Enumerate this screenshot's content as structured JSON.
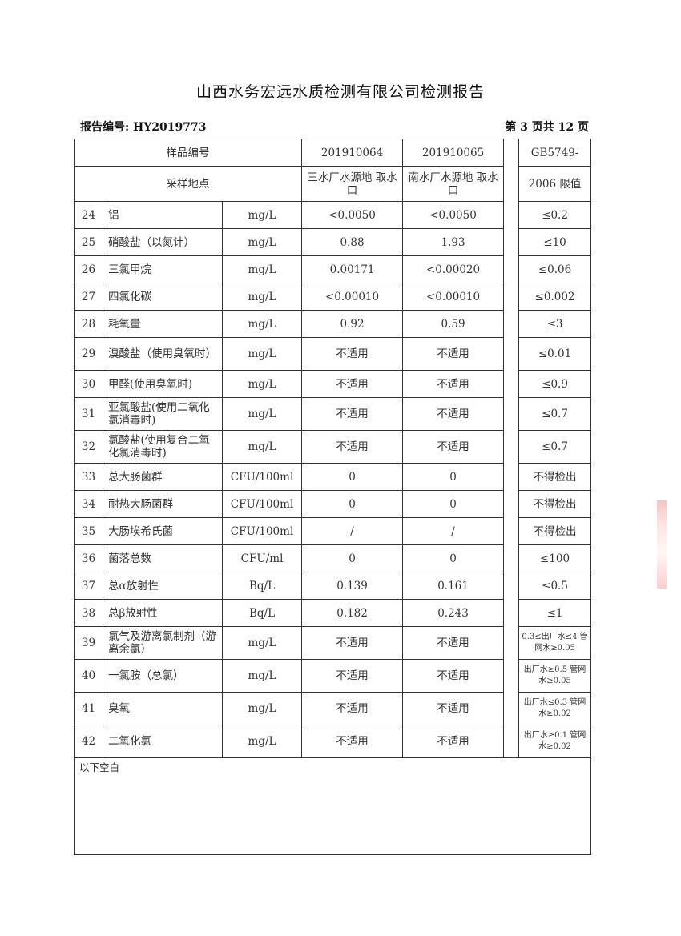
{
  "title": "山西水务宏远水质检测有限公司检测报告",
  "report_no": "报告编号: HY2019773",
  "page": "第 3 页共 12 页",
  "header": {
    "sample_no_label": "样品编号",
    "sample1": "201910064",
    "sample2": "201910065",
    "limit_label": "GB5749-",
    "location_label": "采样地点",
    "location1": "三水厂水源地 取水口",
    "location2": "南水厂水源地 取水口",
    "limit_label2": "2006 限值"
  },
  "rows": [
    {
      "no": "24",
      "name": "铝",
      "unit": "mg/L",
      "v1": "<0.0050",
      "v2": "<0.0050",
      "limit": "≤0.2"
    },
    {
      "no": "25",
      "name": "硝酸盐（以氮计）",
      "unit": "mg/L",
      "v1": "0.88",
      "v2": "1.93",
      "limit": "≤10"
    },
    {
      "no": "26",
      "name": "三氯甲烷",
      "unit": "mg/L",
      "v1": "0.00171",
      "v2": "<0.00020",
      "limit": "≤0.06"
    },
    {
      "no": "27",
      "name": "四氯化碳",
      "unit": "mg/L",
      "v1": "<0.00010",
      "v2": "<0.00010",
      "limit": "≤0.002"
    },
    {
      "no": "28",
      "name": "耗氧量",
      "unit": "mg/L",
      "v1": "0.92",
      "v2": "0.59",
      "limit": "≤3"
    },
    {
      "no": "29",
      "name": "溴酸盐（使用臭氧时）",
      "unit": "mg/L",
      "v1": "不适用",
      "v2": "不适用",
      "limit": "≤0.01"
    },
    {
      "no": "30",
      "name": "甲醛(使用臭氧时)",
      "unit": "mg/L",
      "v1": "不适用",
      "v2": "不适用",
      "limit": "≤0.9"
    },
    {
      "no": "31",
      "name": "亚氯酸盐(使用二氧化氯消毒时)",
      "unit": "mg/L",
      "v1": "不适用",
      "v2": "不适用",
      "limit": "≤0.7"
    },
    {
      "no": "32",
      "name": "氯酸盐(使用复合二氧化氯消毒时)",
      "unit": "mg/L",
      "v1": "不适用",
      "v2": "不适用",
      "limit": "≤0.7"
    },
    {
      "no": "33",
      "name": "总大肠菌群",
      "unit": "CFU/100ml",
      "v1": "0",
      "v2": "0",
      "limit": "不得检出"
    },
    {
      "no": "34",
      "name": "耐热大肠菌群",
      "unit": "CFU/100ml",
      "v1": "0",
      "v2": "0",
      "limit": "不得检出"
    },
    {
      "no": "35",
      "name": "大肠埃希氏菌",
      "unit": "CFU/100ml",
      "v1": "/",
      "v2": "/",
      "limit": "不得检出"
    },
    {
      "no": "36",
      "name": "菌落总数",
      "unit": "CFU/ml",
      "v1": "0",
      "v2": "0",
      "limit": "≤100"
    },
    {
      "no": "37",
      "name": "总α放射性",
      "unit": "Bq/L",
      "v1": "0.139",
      "v2": "0.161",
      "limit": "≤0.5"
    },
    {
      "no": "38",
      "name": "总β放射性",
      "unit": "Bq/L",
      "v1": "0.182",
      "v2": "0.243",
      "limit": "≤1"
    },
    {
      "no": "39",
      "name": "氯气及游离氯制剂（游离余氯）",
      "unit": "mg/L",
      "v1": "不适用",
      "v2": "不适用",
      "limit": "0.3≤出厂水≤4 管网水≥0.05"
    },
    {
      "no": "40",
      "name": "一氯胺（总氯）",
      "unit": "mg/L",
      "v1": "不适用",
      "v2": "不适用",
      "limit": "出厂水≥0.5 管网水≥0.05"
    },
    {
      "no": "41",
      "name": "臭氧",
      "unit": "mg/L",
      "v1": "不适用",
      "v2": "不适用",
      "limit": "出厂水≤0.3 管网水≥0.02"
    },
    {
      "no": "42",
      "name": "二氧化氯",
      "unit": "mg/L",
      "v1": "不适用",
      "v2": "不适用",
      "limit": "出厂水≥0.1 管网水≥0.02"
    }
  ],
  "footer_note": "以下空白"
}
